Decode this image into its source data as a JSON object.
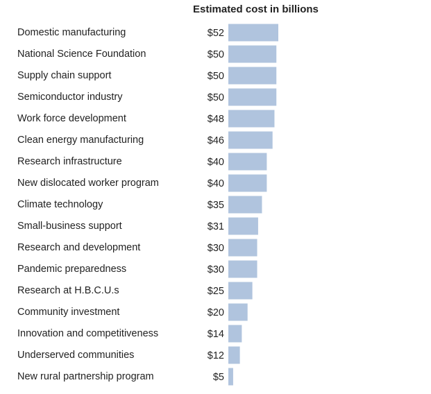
{
  "chart_data": {
    "type": "bar",
    "orientation": "horizontal",
    "title": "Estimated cost in billions",
    "value_prefix": "$",
    "bar_color": "#b0c4de",
    "categories": [
      "Domestic manufacturing",
      "National Science Foundation",
      "Supply chain support",
      "Semiconductor industry",
      "Work force development",
      "Clean energy manufacturing",
      "Research infrastructure",
      "New dislocated worker program",
      "Climate technology",
      "Small-business support",
      "Research and development",
      "Pandemic preparedness",
      "Research at H.B.C.U.s",
      "Community investment",
      "Innovation and competitiveness",
      "Underserved communities",
      "New rural partnership program"
    ],
    "values": [
      52,
      50,
      50,
      50,
      48,
      46,
      40,
      40,
      35,
      31,
      30,
      30,
      25,
      20,
      14,
      12,
      5
    ],
    "value_labels": [
      "$52",
      "$50",
      "$50",
      "$50",
      "$48",
      "$46",
      "$40",
      "$40",
      "$35",
      "$31",
      "$30",
      "$30",
      "$25",
      "$20",
      "$14",
      "$12",
      "$5"
    ]
  }
}
